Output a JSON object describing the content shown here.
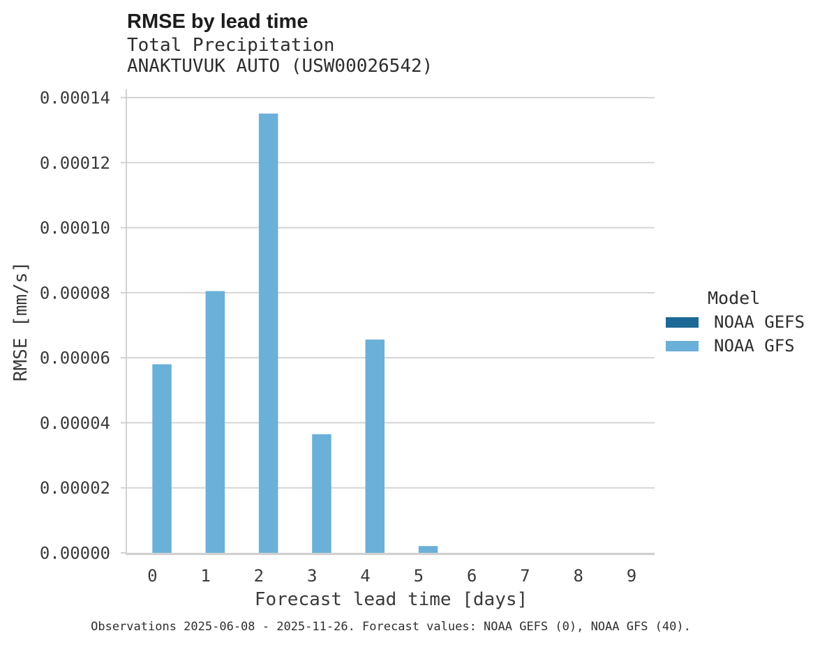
{
  "header": {
    "title": "RMSE by lead time",
    "subtitle_variable": "Total Precipitation",
    "subtitle_station": "ANAKTUVUK AUTO (USW00026542)"
  },
  "chart_data": {
    "type": "bar",
    "bar_mode": "dodged",
    "title": "RMSE by lead time",
    "subtitle": "Total Precipitation",
    "station": "ANAKTUVUK AUTO (USW00026542)",
    "xlabel": "Forecast lead time [days]",
    "ylabel": "RMSE [mm/s]",
    "categories": [
      "0",
      "1",
      "2",
      "3",
      "4",
      "5",
      "6",
      "7",
      "8",
      "9"
    ],
    "series": [
      {
        "name": "NOAA GEFS",
        "color": "#1d6996",
        "values": [
          0,
          0,
          0,
          0,
          0,
          0,
          0,
          0,
          0,
          0
        ]
      },
      {
        "name": "NOAA GFS",
        "color": "#6bb0d8",
        "values": [
          5.8e-05,
          8.05e-05,
          0.0001351,
          3.65e-05,
          6.56e-05,
          2.1e-06,
          0,
          0,
          0,
          0
        ]
      }
    ],
    "ylim": [
      0,
      0.00014
    ],
    "yticks": [
      0,
      2e-05,
      4e-05,
      6e-05,
      8e-05,
      0.0001,
      0.00012,
      0.00014
    ],
    "ytick_labels": [
      "0.00000",
      "0.00002",
      "0.00004",
      "0.00006",
      "0.00008",
      "0.00010",
      "0.00012",
      "0.00014"
    ],
    "grid": true,
    "legend_position": "right",
    "legend_title": "Model"
  },
  "legend": {
    "title": "Model",
    "items": [
      {
        "label": "NOAA GEFS",
        "color": "#1d6996"
      },
      {
        "label": "NOAA GFS",
        "color": "#6bb0d8"
      }
    ]
  },
  "footer": {
    "caption": "Observations 2025-06-08 - 2025-11-26. Forecast values: NOAA GEFS (0), NOAA GFS (40)."
  },
  "colors": {
    "background": "#ffffff",
    "gridline": "#d5d5d5",
    "axis_line": "#cccccc",
    "baseline": "#d0d0d0",
    "tick_label": "#3a3a3a"
  }
}
